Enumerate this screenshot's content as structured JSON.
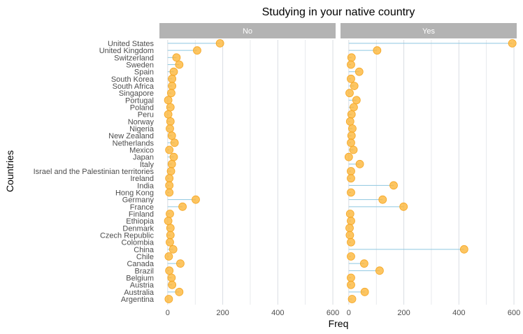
{
  "chart_data": {
    "type": "lollipop",
    "title": "Studying in your native country",
    "xlabel": "Freq",
    "ylabel": "Countries",
    "xlim": [
      -30,
      610
    ],
    "xticks": [
      0,
      200,
      400,
      600
    ],
    "grid": true,
    "colors": {
      "point": "#FDB73A",
      "stem": "#8EC7E0",
      "strip": "#B3B3B3",
      "grid": "#D9DDE2"
    },
    "categories": [
      "United States",
      "United Kingdom",
      "Switzerland",
      "Sweden",
      "Spain",
      "South Korea",
      "South Africa",
      "Singapore",
      "Portugal",
      "Poland",
      "Peru",
      "Norway",
      "Nigeria",
      "New Zealand",
      "Netherlands",
      "Mexico",
      "Japan",
      "Italy",
      "Israel and the Palestinian territories",
      "Ireland",
      "India",
      "Hong Kong",
      "Germany",
      "France",
      "Finland",
      "Ethiopia",
      "Denmark",
      "Czech Republic",
      "Colombia",
      "China",
      "Chile",
      "Canada",
      "Brazil",
      "Belgium",
      "Austria",
      "Australia",
      "Argentina"
    ],
    "series": [
      {
        "name": "No",
        "values": [
          190,
          107,
          32,
          42,
          22,
          16,
          16,
          13,
          2,
          10,
          2,
          10,
          8,
          15,
          25,
          6,
          22,
          15,
          12,
          6,
          6,
          6,
          102,
          54,
          8,
          2,
          10,
          10,
          8,
          20,
          4,
          46,
          6,
          14,
          16,
          42,
          4
        ]
      },
      {
        "name": "Yes",
        "values": [
          594,
          103,
          10,
          8,
          38,
          8,
          20,
          3,
          28,
          18,
          10,
          5,
          13,
          10,
          8,
          17,
          0,
          40,
          8,
          8,
          163,
          8,
          123,
          199,
          5,
          8,
          3,
          4,
          8,
          419,
          8,
          56,
          112,
          8,
          8,
          58,
          12
        ]
      }
    ]
  }
}
